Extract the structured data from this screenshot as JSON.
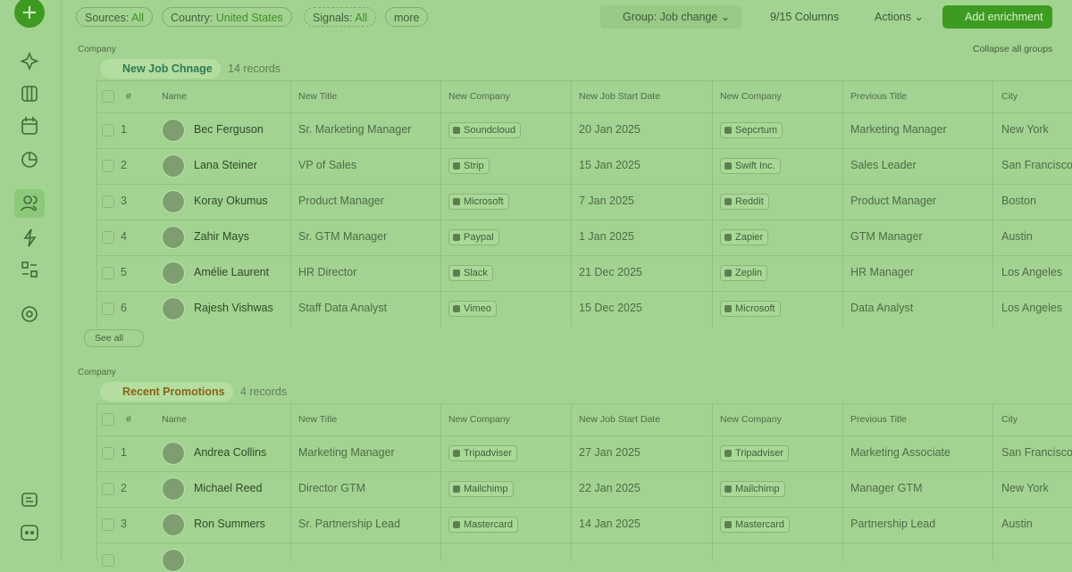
{
  "filters": [
    {
      "label": "Sources:",
      "value": "All"
    },
    {
      "label": "Country:",
      "value": "United States"
    },
    {
      "label": "Signals:",
      "value": "All"
    }
  ],
  "more": "more",
  "toolbar": {
    "group": "Group: Job change",
    "columns": "9/15 Columns",
    "actions": "Actions",
    "enrich": "Add enrichment"
  },
  "collapse": "Collapse all groups",
  "groups": [
    {
      "caption": "Company",
      "title": "New Job Chnage",
      "count": "14 records",
      "columns": [
        "#",
        "Name",
        "New Title",
        "New Company",
        "New Job Start Date",
        "New Company",
        "Previous Title",
        "City"
      ],
      "rows": [
        [
          "1",
          "Bec Ferguson",
          "Sr. Marketing Manager",
          "Soundcloud",
          "20 Jan 2025",
          "Sepcrtum",
          "Marketing Manager",
          "New York"
        ],
        [
          "2",
          "Lana Steiner",
          "VP of Sales",
          "Strip",
          "15 Jan 2025",
          "Swift Inc.",
          "Sales Leader",
          "San Francisco"
        ],
        [
          "3",
          "Koray Okumus",
          "Product Manager",
          "Microsoft",
          "7 Jan 2025",
          "Reddit",
          "Product Manager",
          "Boston"
        ],
        [
          "4",
          "Zahir Mays",
          "Sr. GTM Manager",
          "Paypal",
          "1 Jan 2025",
          "Zapier",
          "GTM Manager",
          "Austin"
        ],
        [
          "5",
          "Amélie Laurent",
          "HR Director",
          "Slack",
          "21 Dec 2025",
          "Zeplin",
          "HR Manager",
          "Los Angeles"
        ],
        [
          "6",
          "Rajesh Vishwas",
          "Staff Data Analyst",
          "Vimeo",
          "15 Dec 2025",
          "Microsoft",
          "Data Analyst",
          "Los Angeles"
        ]
      ],
      "see_all": "See all"
    },
    {
      "caption": "Company",
      "title": "Recent Promotions",
      "count": "4 records",
      "columns": [
        "#",
        "Name",
        "New Title",
        "New Company",
        "New Job Start Date",
        "New Company",
        "Previous Title",
        "City"
      ],
      "rows": [
        [
          "1",
          "Andrea Collins",
          "Marketing Manager",
          "Tripadviser",
          "27 Jan 2025",
          "Tripadviser",
          "Marketing Associate",
          "San Francisco"
        ],
        [
          "2",
          "Michael Reed",
          "Director GTM",
          "Mailchimp",
          "22 Jan 2025",
          "Mailchimp",
          "Manager GTM",
          "New York"
        ],
        [
          "3",
          "Ron Summers",
          "Sr. Partnership Lead",
          "Mastercard",
          "14 Jan 2025",
          "Mastercard",
          "Partnership Lead",
          "Austin"
        ]
      ]
    }
  ]
}
